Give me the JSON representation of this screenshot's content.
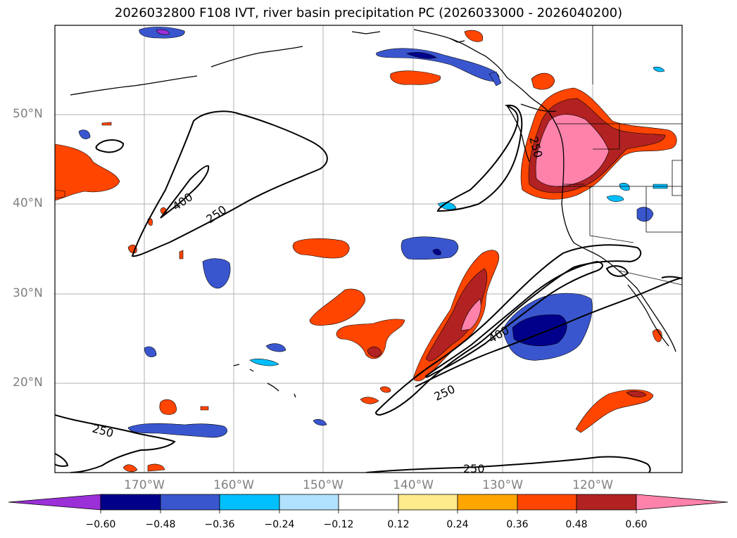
{
  "title": "2026032800 F108 IVT, river basin precipitation PC (2026033000 - 2026040200)",
  "lat_labels": [
    "50°N",
    "40°N",
    "30°N",
    "20°N"
  ],
  "lon_labels": [
    "170°W",
    "160°W",
    "150°W",
    "140°W",
    "130°W",
    "120°W"
  ],
  "contour_labels": [
    "400",
    "250",
    "250",
    "400",
    "250",
    "250",
    "250"
  ],
  "colorbar": {
    "ticks": [
      "−0.60",
      "−0.48",
      "−0.36",
      "−0.24",
      "−0.12",
      "0.12",
      "0.24",
      "0.36",
      "0.48",
      "0.60"
    ],
    "colors": [
      "#9b30d9",
      "#00008b",
      "#3a56cf",
      "#00bfff",
      "#b0e2ff",
      "#ffffff",
      "#ffeb8c",
      "#ffa500",
      "#ff4500",
      "#b22222",
      "#ff82ab"
    ]
  }
}
